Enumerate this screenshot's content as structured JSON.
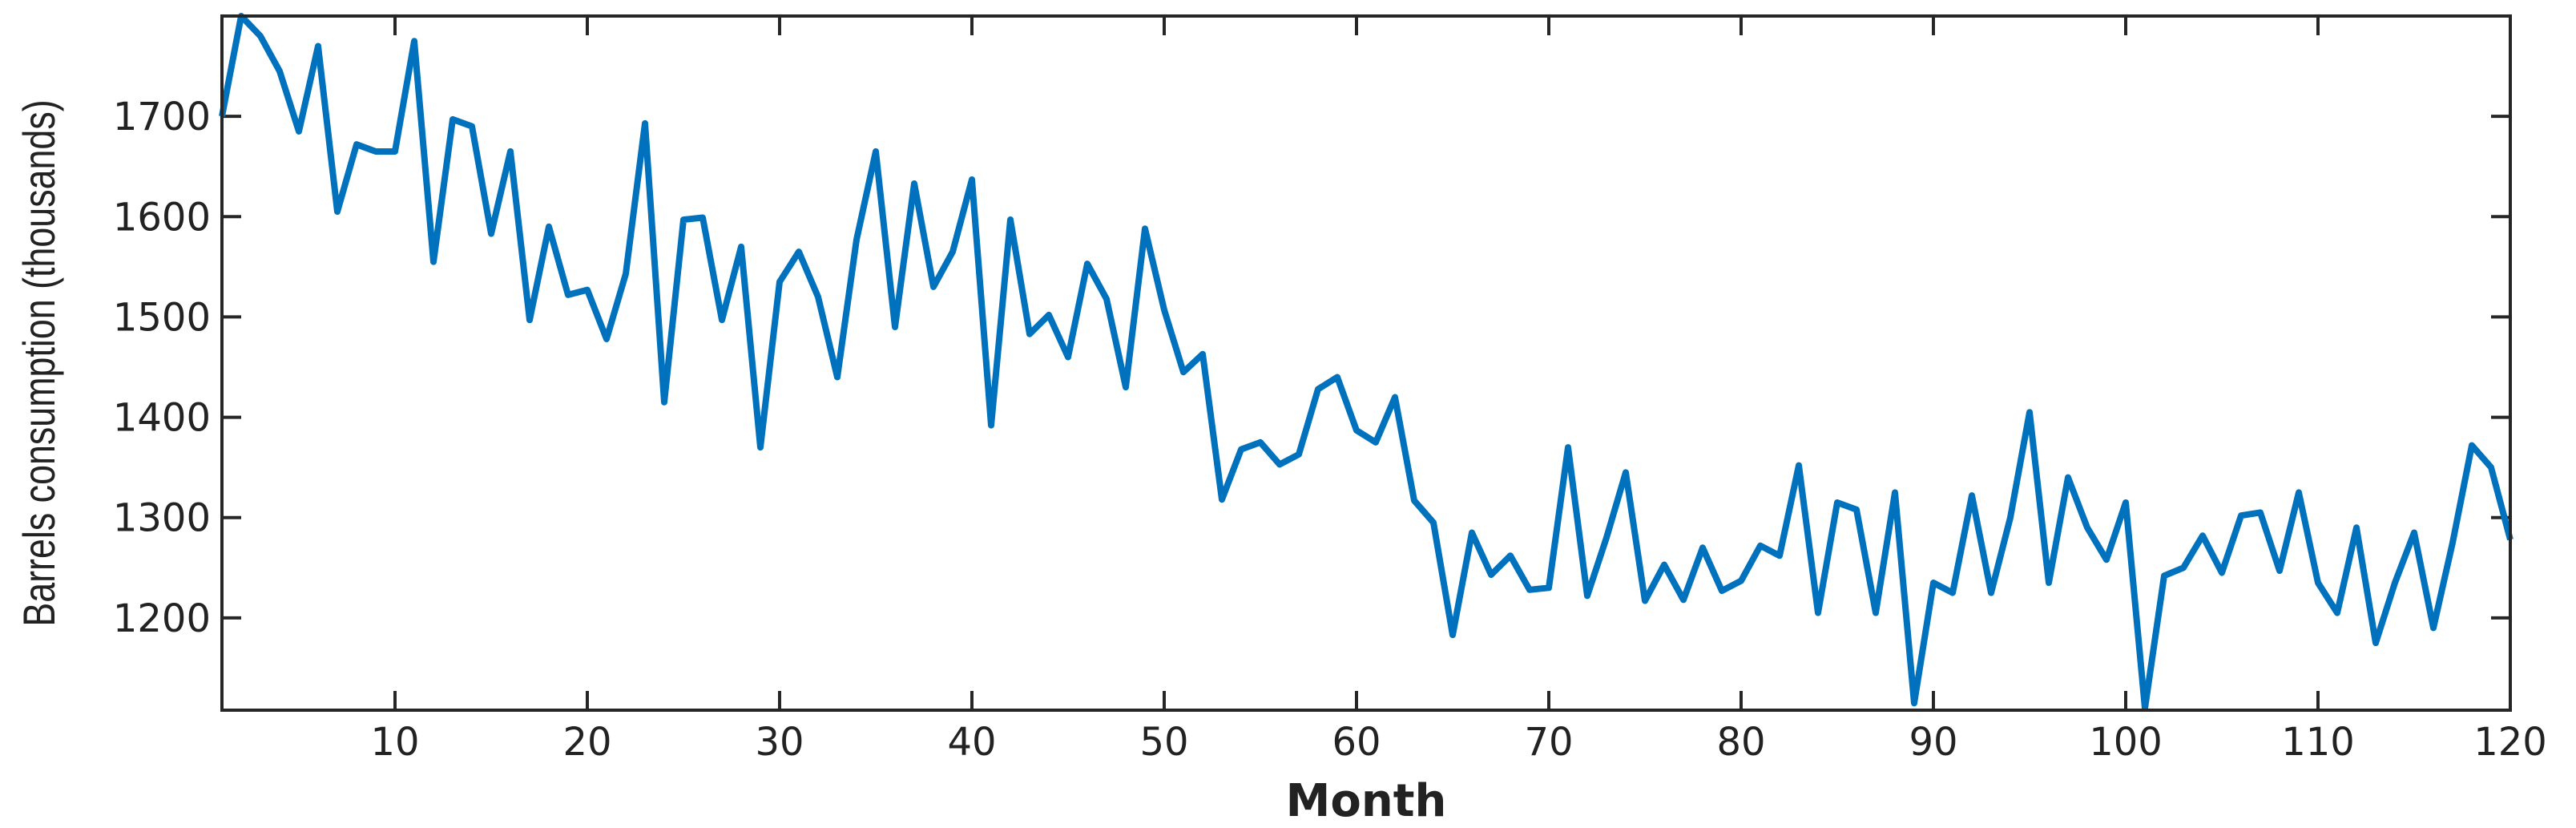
{
  "chart_data": {
    "type": "line",
    "xlabel": "Month",
    "ylabel": "Barrels consumption (thousands)",
    "x": [
      1,
      2,
      3,
      4,
      5,
      6,
      7,
      8,
      9,
      10,
      11,
      12,
      13,
      14,
      15,
      16,
      17,
      18,
      19,
      20,
      21,
      22,
      23,
      24,
      25,
      26,
      27,
      28,
      29,
      30,
      31,
      32,
      33,
      34,
      35,
      36,
      37,
      38,
      39,
      40,
      41,
      42,
      43,
      44,
      45,
      46,
      47,
      48,
      49,
      50,
      51,
      52,
      53,
      54,
      55,
      56,
      57,
      58,
      59,
      60,
      61,
      62,
      63,
      64,
      65,
      66,
      67,
      68,
      69,
      70,
      71,
      72,
      73,
      74,
      75,
      76,
      77,
      78,
      79,
      80,
      81,
      82,
      83,
      84,
      85,
      86,
      87,
      88,
      89,
      90,
      91,
      92,
      93,
      94,
      95,
      96,
      97,
      98,
      99,
      100,
      101,
      102,
      103,
      104,
      105,
      106,
      107,
      108,
      109,
      110,
      111,
      112,
      113,
      114,
      115,
      116,
      117,
      118,
      119,
      120
    ],
    "series": [
      {
        "color": "#0072bd",
        "values": [
          1700,
          1800,
          1780,
          1745,
          1685,
          1770,
          1605,
          1672,
          1665,
          1665,
          1775,
          1555,
          1697,
          1690,
          1583,
          1665,
          1497,
          1590,
          1522,
          1527,
          1478,
          1543,
          1693,
          1415,
          1597,
          1599,
          1497,
          1570,
          1370,
          1535,
          1565,
          1520,
          1440,
          1577,
          1665,
          1490,
          1633,
          1530,
          1565,
          1637,
          1392,
          1597,
          1483,
          1502,
          1460,
          1553,
          1518,
          1430,
          1588,
          1507,
          1445,
          1463,
          1318,
          1368,
          1375,
          1353,
          1363,
          1428,
          1440,
          1387,
          1375,
          1420,
          1317,
          1295,
          1183,
          1285,
          1243,
          1262,
          1228,
          1230,
          1370,
          1222,
          1280,
          1345,
          1217,
          1253,
          1218,
          1270,
          1227,
          1237,
          1272,
          1262,
          1352,
          1205,
          1315,
          1308,
          1205,
          1325,
          1115,
          1235,
          1225,
          1322,
          1225,
          1300,
          1405,
          1235,
          1340,
          1290,
          1258,
          1315,
          1110,
          1242,
          1250,
          1282,
          1245,
          1302,
          1305,
          1247,
          1325,
          1235,
          1205,
          1290,
          1175,
          1235,
          1285,
          1190,
          1275,
          1372,
          1350,
          1278
        ]
      }
    ],
    "xlim": [
      1,
      120
    ],
    "xticks": [
      10,
      20,
      30,
      40,
      50,
      60,
      70,
      80,
      90,
      100,
      110,
      120
    ],
    "ylim": [
      1108,
      1800
    ],
    "yticks": [
      1200,
      1300,
      1400,
      1500,
      1600,
      1700
    ]
  }
}
